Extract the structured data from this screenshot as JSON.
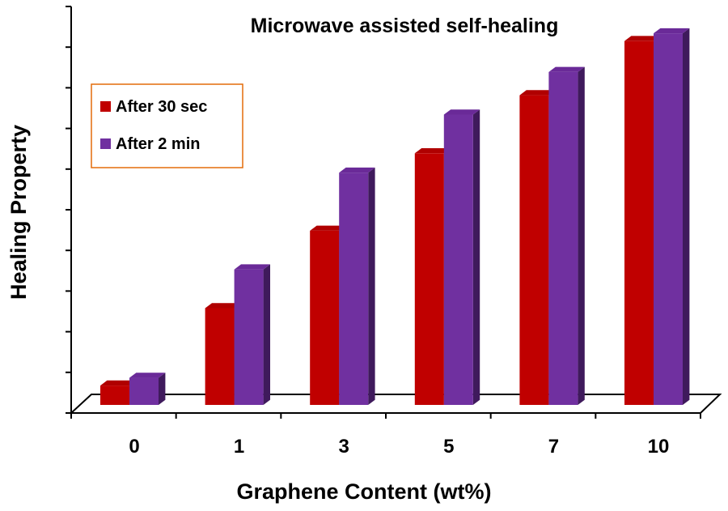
{
  "chart_data": {
    "type": "bar",
    "title": "Microwave assisted self-healing",
    "xlabel": "Graphene Content (wt%)",
    "ylabel": "Healing Property",
    "categories": [
      "0",
      "1",
      "3",
      "5",
      "7",
      "10"
    ],
    "series": [
      {
        "name": "After 30 sec",
        "values": [
          5,
          25,
          45,
          65,
          80,
          94
        ]
      },
      {
        "name": "After 2 min",
        "values": [
          7,
          35,
          60,
          75,
          86,
          96
        ]
      }
    ],
    "ylim": [
      0,
      100
    ],
    "y_tick_labels": false,
    "legend_position": "top-left",
    "colors": {
      "series": [
        "#c00000",
        "#7030a0"
      ],
      "series_side": [
        "#7a0000",
        "#3f1a5c"
      ],
      "series_top": [
        "#b00000",
        "#6a2a98"
      ],
      "legend_border": "#e46c0a",
      "axis": "#000000"
    }
  }
}
